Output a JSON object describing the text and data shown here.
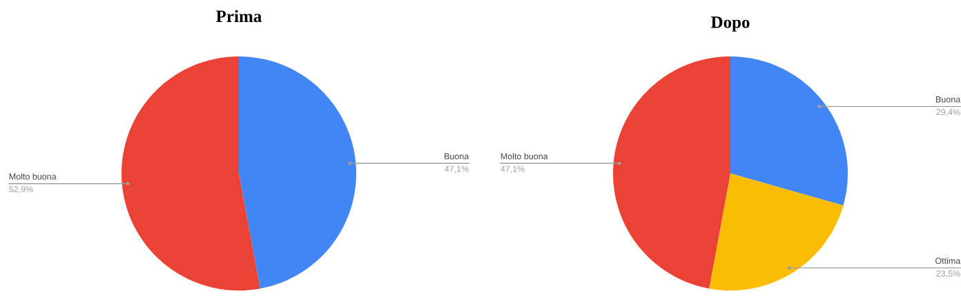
{
  "chart_data": [
    {
      "type": "pie",
      "title": "Prima",
      "categories": [
        "Buona",
        "Molto buona"
      ],
      "values": [
        47.1,
        52.9
      ],
      "colors": [
        "#4285f4",
        "#ea4335"
      ],
      "value_labels": [
        "47,1%",
        "52,9%"
      ]
    },
    {
      "type": "pie",
      "title": "Dopo",
      "categories": [
        "Buona",
        "Ottima",
        "Molto buona"
      ],
      "values": [
        29.4,
        23.5,
        47.1
      ],
      "colors": [
        "#4285f4",
        "#fbbc04",
        "#ea4335"
      ],
      "value_labels": [
        "29,4%",
        "23,5%",
        "47,1%"
      ]
    }
  ]
}
